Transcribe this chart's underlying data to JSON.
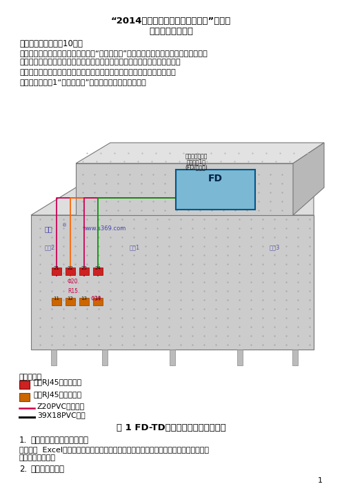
{
  "title1": "“2014年甘肃省职业院校技能大赛”中职组",
  "title2": "综合布线赛项试题",
  "section1": "一、工程设计部分（10分）",
  "para1a": "本次网络综合布线技术竞赛给定一个“建筑物模型”作为网络综合布线系统工程实例，请各参赛队按照下面文档要求完成工程设计，",
  "para1b": "参赛队按照下面文档要求完成工程设计，并且进行安装施工和编写竺工资料。",
  "para2": "裁判依据各参赛队提交的书面打印文档评分，没有书面文档的项目不得分。",
  "para3": "参赛选手根据图1“建筑物模型”完成该部分工程设计内容。",
  "fig_caption": "图 1 FD-TD网络综合布线系统示意图",
  "legend_title": "图例说明：",
  "legend1": "双口RJ45网络插座。",
  "legend2": "单口RJ45网络插座。",
  "legend3": "Ζ20PVC徯弯管。",
  "legend4": "39X18PVC线槽",
  "task1_num": "1.",
  "task1": "完成网络信息点点数统计表",
  "task1_detail_a": "要求使用  Excel软件编制，信息点设置合理，表格设计合理、数量正确、项目名称准确、",
  "task1_detail_b": "签字和日期完整。",
  "task2_num": "2.",
  "task2": "完成材料统计表",
  "page_num": "1",
  "bg_color": "#ffffff",
  "text_color": "#000000",
  "title_color": "#000000"
}
